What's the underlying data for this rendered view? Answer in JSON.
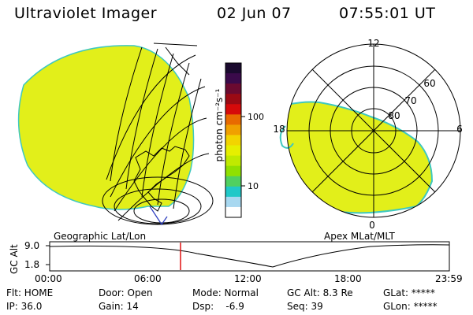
{
  "header": {
    "instrument": "Ultraviolet Imager",
    "date": "02 Jun 07",
    "time": "07:55:01 UT"
  },
  "colorbar": {
    "unit_label": "photon cm⁻²s⁻¹",
    "ticks": [
      "100",
      "10"
    ],
    "colors": [
      "#1a0a2e",
      "#3a0a4a",
      "#6b0a30",
      "#9b0a14",
      "#d60a0a",
      "#e86a00",
      "#f0a000",
      "#f2d400",
      "#e6ef00",
      "#c0ea00",
      "#90e000",
      "#50d060",
      "#20c8c8",
      "#a8d8f0",
      "#ffffff"
    ]
  },
  "left_panel": {
    "label": "Geographic Lat/Lon",
    "fill_color": "#e2ef1a"
  },
  "right_panel": {
    "label": "Apex MLat/MLT",
    "mlt_labels": {
      "top": "12",
      "left": "18",
      "right": "6",
      "bottom": "0"
    },
    "lat_labels": [
      "60",
      "70",
      "80"
    ],
    "fill_color": "#e2ef1a"
  },
  "altitude_plot": {
    "ylabel": "GC Alt",
    "y_ticks": [
      "9.0",
      "1.8"
    ],
    "x_ticks": [
      "00:00",
      "06:00",
      "12:00",
      "18:00",
      "23:59"
    ],
    "current_time_marker": "07:55",
    "marker_color": "#e01010"
  },
  "footer": {
    "flt": "Flt: HOME",
    "ip": "IP: 36.0",
    "door": "Door: Open",
    "gain": "Gain: 14",
    "mode": "Mode: Normal",
    "dsp": "Dsp:    -6.9",
    "gc_alt": "GC Alt: 8.3 Re",
    "seq": "Seq: 39",
    "glat": "GLat: *****",
    "glon": "GLon: *****"
  }
}
